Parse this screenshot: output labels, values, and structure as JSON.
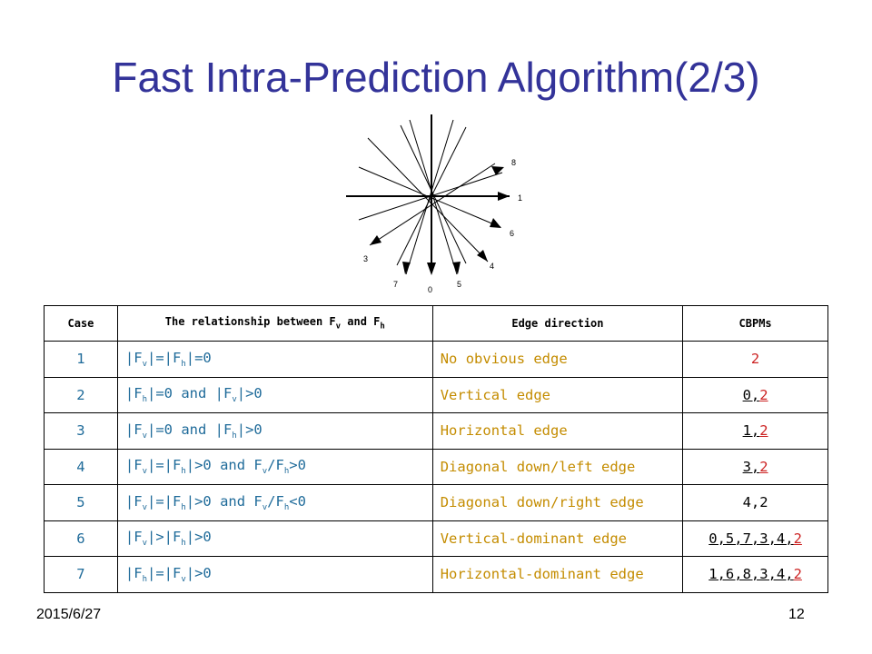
{
  "title": "Fast Intra-Prediction Algorithm(2/3)",
  "diagram": {
    "labels": [
      "8",
      "1",
      "6",
      "4",
      "5",
      "0",
      "7",
      "3"
    ]
  },
  "table": {
    "headers": [
      "Case",
      "The relationship between F",
      "v",
      " and F",
      "h",
      "Edge direction",
      "CBPMs"
    ],
    "rows": [
      {
        "case": "1",
        "rel": [
          "|F",
          "v",
          "|=|F",
          "h",
          "|=0"
        ],
        "edge": "No obvious edge",
        "cbpm_pre": "",
        "cbpm_post": "2"
      },
      {
        "case": "2",
        "rel": [
          "|F",
          "h",
          "|=0 and |F",
          "v",
          "|>0"
        ],
        "edge": "Vertical edge",
        "cbpm_pre": "0,",
        "cbpm_post": "2"
      },
      {
        "case": "3",
        "rel": [
          "|F",
          "v",
          "|=0 and |F",
          "h",
          "|>0"
        ],
        "edge": "Horizontal edge",
        "cbpm_pre": "1,",
        "cbpm_post": "2"
      },
      {
        "case": "4",
        "rel": [
          "|F",
          "v",
          "|=|F",
          "h",
          "|>0 and F",
          "v",
          "/F",
          "h",
          ">0"
        ],
        "edge": "Diagonal down/left edge",
        "cbpm_pre": "3,",
        "cbpm_post": "2"
      },
      {
        "case": "5",
        "rel": [
          "|F",
          "v",
          "|=|F",
          "h",
          "|>0 and F",
          "v",
          "/F",
          "h",
          "<0"
        ],
        "edge": "Diagonal down/right edge",
        "cbpm_pre": "4,2",
        "cbpm_post": ""
      },
      {
        "case": "6",
        "rel": [
          "|F",
          "v",
          "|>|F",
          "h",
          "|>0"
        ],
        "edge": "Vertical-dominant edge",
        "cbpm_pre": "0,5,7,3,4,",
        "cbpm_post": "2"
      },
      {
        "case": "7",
        "rel": [
          "|F",
          "h",
          "|=|F",
          "v",
          "|>0"
        ],
        "edge": "Horizontal-dominant edge",
        "cbpm_pre": "1,6,8,3,4,",
        "cbpm_post": "2"
      }
    ]
  },
  "footer": {
    "date": "2015/6/27",
    "page": "12"
  }
}
